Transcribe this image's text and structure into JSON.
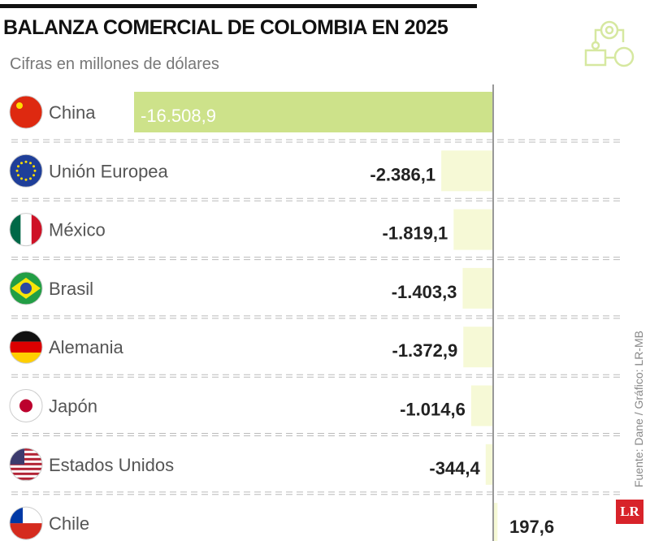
{
  "chart_data": {
    "type": "bar",
    "orientation": "horizontal",
    "title": "BALANZA COMERCIAL DE COLOMBIA EN 2025",
    "subtitle": "Cifras en millones de dólares",
    "categories": [
      "China",
      "Unión Europea",
      "México",
      "Brasil",
      "Alemania",
      "Japón",
      "Estados Unidos",
      "Chile"
    ],
    "values": [
      -16508.9,
      -2386.1,
      -1819.1,
      -1403.3,
      -1372.9,
      -1014.6,
      -344.4,
      197.6
    ],
    "data_labels": [
      "-16.508,9",
      "-2.386,1",
      "-1.819,1",
      "-1.403,3",
      "-1.372,9",
      "-1.014,6",
      "-344,4",
      "197,6"
    ],
    "xlim": [
      -16508.9,
      0
    ],
    "grid": false,
    "colors": {
      "highlight": "#cde28a",
      "bar": "#f6f9d6",
      "zero_line": "#999999"
    }
  },
  "source": "Fuente: Dane / Gráfico: LR-MB",
  "logo_text": "LR"
}
